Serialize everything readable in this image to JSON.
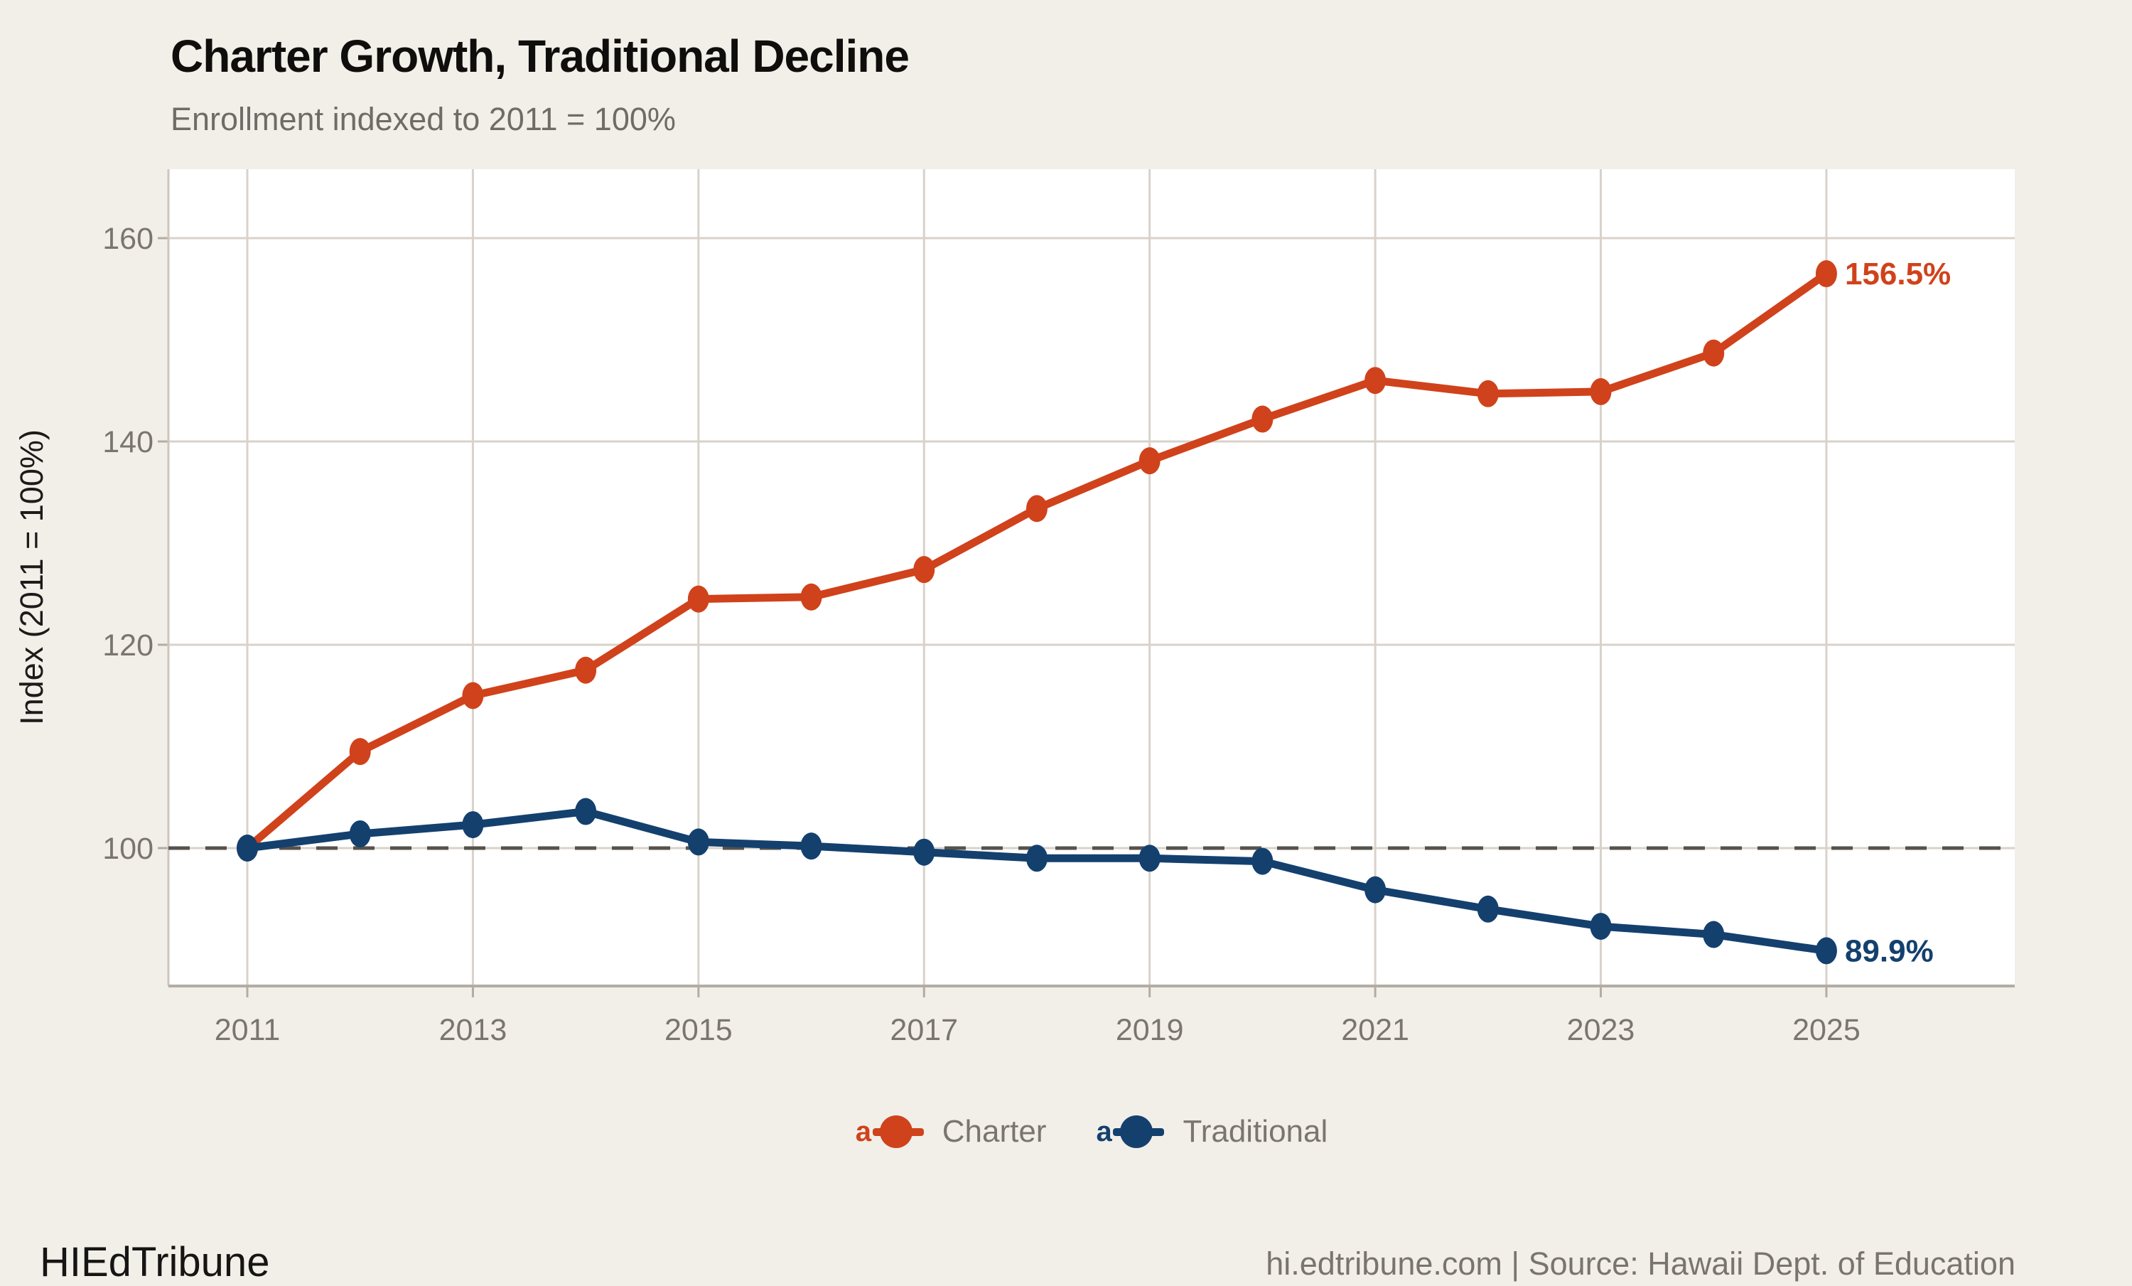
{
  "header": {
    "title": "Charter Growth, Traditional Decline",
    "subtitle": "Enrollment indexed to 2011 = 100%"
  },
  "footer": {
    "brand": "HIEdTribune",
    "source": "hi.edtribune.com | Source: Hawaii Dept. of Education"
  },
  "legend": {
    "key_glyph": "a",
    "items": [
      {
        "label": "Charter",
        "color": "#D0421B"
      },
      {
        "label": "Traditional",
        "color": "#14406E"
      }
    ]
  },
  "colors": {
    "background": "#F2EFE9",
    "panel": "#FFFFFF",
    "grid": "#D8D2CA",
    "left_axis": "#CCC6BE",
    "bottom_axis": "#B3ACA4",
    "tick": "#B3ACA4",
    "tick_label": "#7B7570",
    "axis_title": "#1C1B1A",
    "reference_line": "#56524C"
  },
  "chart_data": {
    "type": "line",
    "title": "Charter Growth, Traditional Decline",
    "subtitle": "Enrollment indexed to 2011 = 100%",
    "xlabel": "",
    "ylabel": "Index (2011 = 100%)",
    "x": [
      2011,
      2012,
      2013,
      2014,
      2015,
      2016,
      2017,
      2018,
      2019,
      2020,
      2021,
      2022,
      2023,
      2024,
      2025
    ],
    "xticks": [
      2011,
      2013,
      2015,
      2017,
      2019,
      2021,
      2023,
      2025
    ],
    "yticks": [
      100,
      120,
      140,
      160
    ],
    "xlim": [
      2010.3,
      2026.7
    ],
    "ylim": [
      86.4,
      166.8
    ],
    "grid": true,
    "legend_position": "bottom",
    "reference_line": {
      "value": 100,
      "style": "dashed"
    },
    "series": [
      {
        "name": "Charter",
        "color": "#D0421B",
        "end_label": "156.5%",
        "values": [
          100,
          109.5,
          115.0,
          117.5,
          124.5,
          124.7,
          127.4,
          133.4,
          138.1,
          142.2,
          146.0,
          144.7,
          144.9,
          148.7,
          156.5
        ]
      },
      {
        "name": "Traditional",
        "color": "#14406E",
        "end_label": "89.9%",
        "values": [
          100,
          101.4,
          102.3,
          103.6,
          100.6,
          100.2,
          99.6,
          99.0,
          99.0,
          98.7,
          95.9,
          94.0,
          92.3,
          91.5,
          89.9
        ]
      }
    ]
  }
}
